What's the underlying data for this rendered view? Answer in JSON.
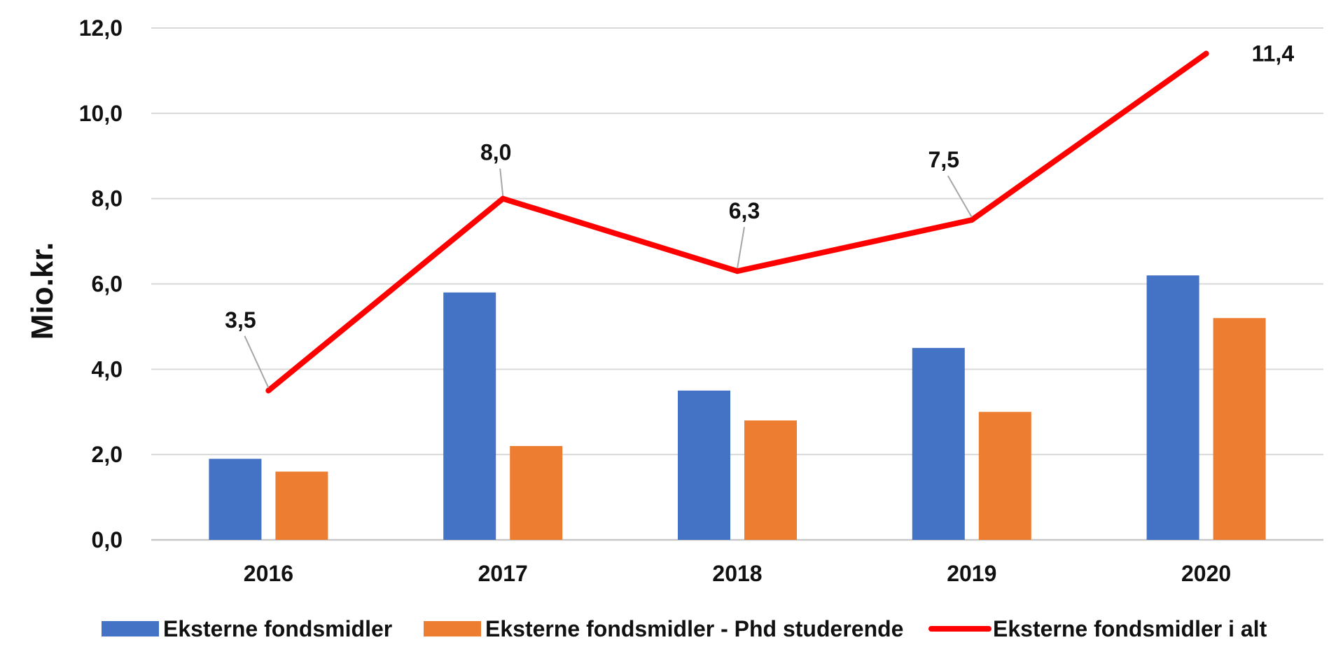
{
  "chart_data": {
    "type": "bar",
    "title": "",
    "xlabel": "",
    "ylabel": "Mio.kr.",
    "ylim": [
      0,
      12
    ],
    "yticks": [
      "0,0",
      "2,0",
      "4,0",
      "6,0",
      "8,0",
      "10,0",
      "12,0"
    ],
    "ytick_values": [
      0,
      2,
      4,
      6,
      8,
      10,
      12
    ],
    "categories": [
      "2016",
      "2017",
      "2018",
      "2019",
      "2020"
    ],
    "grid": true,
    "legend_position": "bottom",
    "series": [
      {
        "name": "Eksterne fondsmidler",
        "type": "bar",
        "color": "#4472C4",
        "values": [
          1.9,
          5.8,
          3.5,
          4.5,
          6.2
        ]
      },
      {
        "name": "Eksterne fondsmidler - Phd studerende",
        "type": "bar",
        "color": "#ED7D31",
        "values": [
          1.6,
          2.2,
          2.8,
          3.0,
          5.2
        ]
      },
      {
        "name": "Eksterne fondsmidler i alt",
        "type": "line",
        "color": "#FF0000",
        "values": [
          3.5,
          8.0,
          6.3,
          7.5,
          11.4
        ],
        "data_labels": [
          "3,5",
          "8,0",
          "6,3",
          "7,5",
          "11,4"
        ]
      }
    ]
  }
}
